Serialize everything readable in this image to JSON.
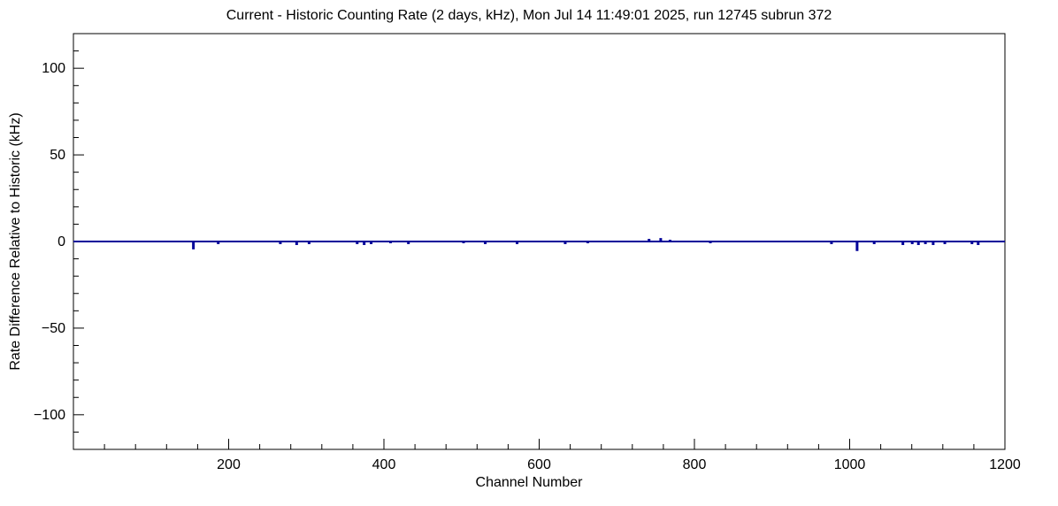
{
  "chart_data": {
    "type": "line",
    "title": "Current - Historic Counting Rate (2 days, kHz), Mon Jul 14 11:49:01 2025, run 12745 subrun 372",
    "xlabel": "Channel Number",
    "ylabel": "Rate Difference Relative to Historic (kHz)",
    "xlim": [
      0,
      1200
    ],
    "ylim": [
      -120,
      120
    ],
    "x_major_ticks": [
      200,
      400,
      600,
      800,
      1000,
      1200
    ],
    "x_minor_step": 40,
    "y_major_ticks": [
      -100,
      -50,
      0,
      50,
      100
    ],
    "y_minor_step": 10,
    "grid": false,
    "legend_position": "none",
    "background": "#ffffff",
    "frame_color": "#000000",
    "line_color": "#000099",
    "baseline": 0,
    "series": [
      {
        "name": "rate-difference-current-minus-historic",
        "baseline_value": 0,
        "spikes": [
          [
            154,
            -4
          ],
          [
            186,
            -1
          ],
          [
            266,
            -1
          ],
          [
            287,
            -1.5
          ],
          [
            303,
            -1
          ],
          [
            365,
            -1
          ],
          [
            374,
            -1.5
          ],
          [
            383,
            -1
          ],
          [
            408,
            -0.5
          ],
          [
            431,
            -1
          ],
          [
            502,
            -0.5
          ],
          [
            530,
            -1
          ],
          [
            571,
            -1
          ],
          [
            633,
            -1
          ],
          [
            662,
            -0.5
          ],
          [
            741,
            1
          ],
          [
            756,
            1.5
          ],
          [
            768,
            0.5
          ],
          [
            820,
            -0.5
          ],
          [
            976,
            -1
          ],
          [
            1009,
            -5
          ],
          [
            1031,
            -1
          ],
          [
            1068,
            -1.5
          ],
          [
            1080,
            -1
          ],
          [
            1088,
            -1.5
          ],
          [
            1097,
            -1
          ],
          [
            1107,
            -1.5
          ],
          [
            1122,
            -1
          ],
          [
            1157,
            -1
          ],
          [
            1165,
            -1.5
          ]
        ]
      }
    ]
  }
}
